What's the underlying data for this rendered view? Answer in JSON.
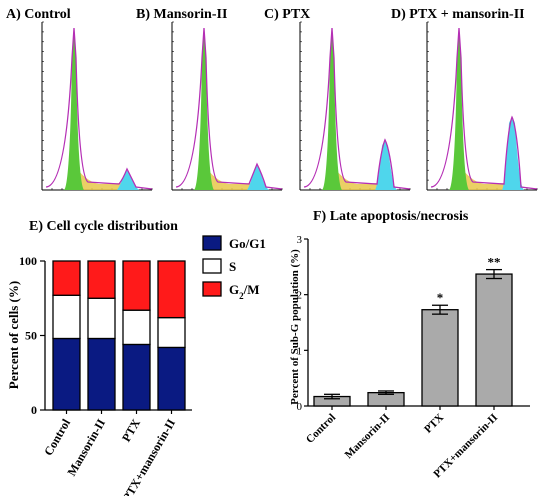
{
  "histograms": [
    {
      "label": "A) Control",
      "g1_peak": 1.0,
      "g2_peak": 0.13
    },
    {
      "label": "B) Mansorin-II",
      "g1_peak": 1.0,
      "g2_peak": 0.16
    },
    {
      "label": "C) PTX",
      "g1_peak": 1.0,
      "g2_peak": 0.31
    },
    {
      "label": "D) PTX + mansorin-II",
      "g1_peak": 1.0,
      "g2_peak": 0.45
    }
  ],
  "chart_data": [
    {
      "type": "bar",
      "title": "E) Cell cycle distribution",
      "ylabel": "Percent of cells (%)",
      "ylim": [
        0,
        100
      ],
      "yticks": [
        "0",
        "50",
        "100"
      ],
      "categories": [
        "Control",
        "Mansorin-II",
        "PTX",
        "PTX+mansorin-II"
      ],
      "stacked": true,
      "series": [
        {
          "name": "Go/G1",
          "color": "#0a1a82",
          "values": [
            48,
            48,
            44,
            42
          ]
        },
        {
          "name": "S",
          "color": "#ffffff",
          "values": [
            29,
            27,
            23,
            20
          ]
        },
        {
          "name": "G2/M",
          "color": "#ff1a1a",
          "values": [
            23,
            25,
            33,
            38
          ]
        }
      ],
      "legend": [
        {
          "base": "Go/G1",
          "sub": ""
        },
        {
          "base": "S",
          "sub": ""
        },
        {
          "base": "G",
          "sub": "2",
          "suffix": "/M"
        }
      ],
      "legend_position": "right"
    },
    {
      "type": "bar",
      "title": "F) Late apoptosis/necrosis",
      "ylabel": "Percent of Sub-G population (%)",
      "ylim": [
        0,
        3
      ],
      "yticks": [
        "0",
        "1",
        "2",
        "3"
      ],
      "categories": [
        "Control",
        "Mansorin-II",
        "PTX",
        "PTX+mansorin-II"
      ],
      "values": [
        0.17,
        0.24,
        1.73,
        2.37
      ],
      "errors": [
        0.04,
        0.03,
        0.08,
        0.08
      ],
      "annotations": [
        "",
        "",
        "*",
        "**"
      ],
      "color": "#aaaaaa"
    }
  ]
}
